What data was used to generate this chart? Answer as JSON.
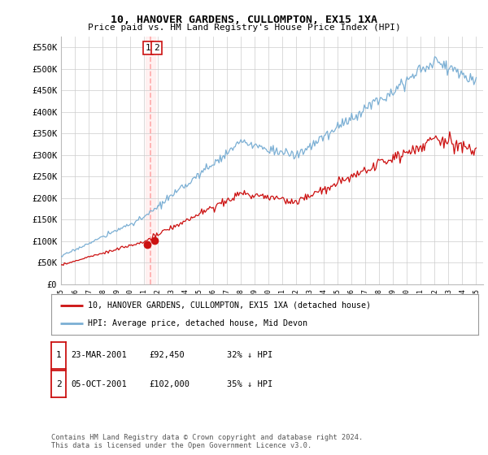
{
  "title": "10, HANOVER GARDENS, CULLOMPTON, EX15 1XA",
  "subtitle": "Price paid vs. HM Land Registry's House Price Index (HPI)",
  "ylabel_ticks": [
    "£0",
    "£50K",
    "£100K",
    "£150K",
    "£200K",
    "£250K",
    "£300K",
    "£350K",
    "£400K",
    "£450K",
    "£500K",
    "£550K"
  ],
  "ytick_values": [
    0,
    50000,
    100000,
    150000,
    200000,
    250000,
    300000,
    350000,
    400000,
    450000,
    500000,
    550000
  ],
  "ylim": [
    0,
    575000
  ],
  "sale1_date_num": 2001.22,
  "sale1_price": 92450,
  "sale1_label": "1",
  "sale2_date_num": 2001.75,
  "sale2_price": 102000,
  "sale2_label": "2",
  "vline_x": 2001.45,
  "hpi_color": "#7bafd4",
  "price_color": "#cc1111",
  "vline_color": "#ffaaaa",
  "vshade_color": "#ffe8e8",
  "legend_label_price": "10, HANOVER GARDENS, CULLOMPTON, EX15 1XA (detached house)",
  "legend_label_hpi": "HPI: Average price, detached house, Mid Devon",
  "table_rows": [
    {
      "num": "1",
      "date": "23-MAR-2001",
      "price": "£92,450",
      "pct": "32% ↓ HPI"
    },
    {
      "num": "2",
      "date": "05-OCT-2001",
      "price": "£102,000",
      "pct": "35% ↓ HPI"
    }
  ],
  "footnote": "Contains HM Land Registry data © Crown copyright and database right 2024.\nThis data is licensed under the Open Government Licence v3.0.",
  "background_color": "#ffffff",
  "grid_color": "#cccccc"
}
